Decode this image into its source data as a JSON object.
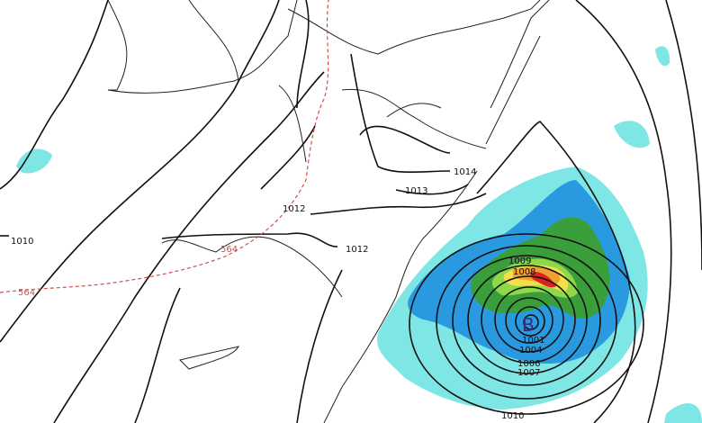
{
  "map": {
    "isobar_labels": [
      "1014",
      "1013",
      "1012",
      "1012",
      "1010",
      "1009",
      "1008",
      "1001",
      "1004",
      "1006",
      "1007",
      "1010"
    ],
    "thickness_labels": [
      "564",
      "564"
    ],
    "low_center_marker": "B",
    "colors": {
      "isobar": "#111111",
      "thickness_564": "#d05050",
      "precip_light": "#7fe6e6",
      "precip_moderate": "#2a9ae0",
      "precip_heavy": "#3a9e3a",
      "precip_lightgreen": "#8fd84a",
      "precip_yellow": "#f2df4a",
      "precip_orange": "#efa030",
      "precip_red": "#dd2222",
      "low_marker": "#3a2a7a"
    }
  }
}
